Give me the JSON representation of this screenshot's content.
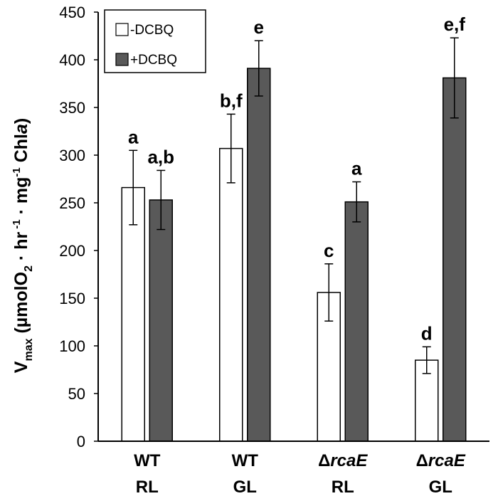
{
  "chart_data": {
    "type": "bar",
    "title": "",
    "ylabel": {
      "v": "V",
      "v_sub": "max",
      "pre": " (µmolO",
      "o2_sub": "2",
      "mid": " · hr",
      "hr_sup": " -1",
      "mg": " · mg",
      "mg_sup": "-1",
      "chl": " Chl",
      "chl_a": "a",
      "post": ")"
    },
    "ylim": [
      0,
      450
    ],
    "yticks": [
      "0",
      "50",
      "100",
      "150",
      "200",
      "250",
      "300",
      "350",
      "400",
      "450"
    ],
    "ytick_values": [
      0,
      50,
      100,
      150,
      200,
      250,
      300,
      350,
      400,
      450
    ],
    "grid": false,
    "legend_position": "top-left",
    "categories": [
      {
        "line1_prefix": "",
        "line1_italic": "WT",
        "line1_italic_flag": false,
        "line2": "RL"
      },
      {
        "line1_prefix": "",
        "line1_italic": "WT",
        "line1_italic_flag": false,
        "line2": "GL"
      },
      {
        "line1_prefix": "Δ",
        "line1_italic": "rcaE",
        "line1_italic_flag": true,
        "line2": "RL"
      },
      {
        "line1_prefix": "Δ",
        "line1_italic": "rcaE",
        "line1_italic_flag": true,
        "line2": "GL"
      }
    ],
    "series": [
      {
        "name": "-DCBQ",
        "color": "#ffffff",
        "values": [
          266,
          307,
          156,
          85
        ],
        "errors": [
          39,
          36,
          30,
          14
        ],
        "labels": [
          "a",
          "b,f",
          "c",
          "d"
        ]
      },
      {
        "name": "+DCBQ",
        "color": "#595959",
        "values": [
          253,
          391,
          251,
          381
        ],
        "errors": [
          31,
          29,
          21,
          42
        ],
        "labels": [
          "a,b",
          "e",
          "a",
          "e,f"
        ]
      }
    ]
  }
}
